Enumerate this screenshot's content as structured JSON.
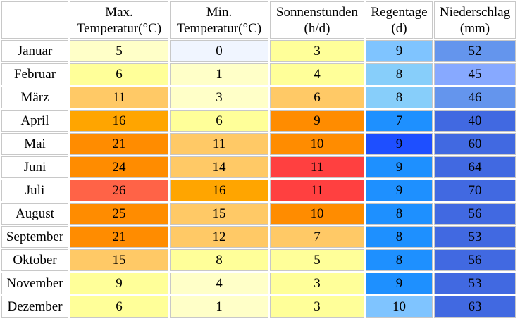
{
  "headers": [
    {
      "line1": "Max.",
      "line2": "Temperatur(°C)"
    },
    {
      "line1": "Min.",
      "line2": "Temperatur(°C)"
    },
    {
      "line1": "Sonnenstunden",
      "line2": "(h/d)"
    },
    {
      "line1": "Regentage",
      "line2": "(d)"
    },
    {
      "line1": "Niederschlag",
      "line2": "(mm)"
    }
  ],
  "rows": [
    {
      "month": "Januar",
      "max": "5",
      "min": "0",
      "sun": "3",
      "rain_days": "9",
      "precip": "52",
      "colors": {
        "max": "#ffffc8",
        "min": "#f0f5ff",
        "sun": "#ffff99",
        "rain_days": "#7fc4ff",
        "precip": "#6495ed"
      }
    },
    {
      "month": "Februar",
      "max": "6",
      "min": "1",
      "sun": "4",
      "rain_days": "8",
      "precip": "45",
      "colors": {
        "max": "#ffff99",
        "min": "#ffffc8",
        "sun": "#ffff99",
        "rain_days": "#87cefa",
        "precip": "#87a9ff"
      }
    },
    {
      "month": "März",
      "max": "11",
      "min": "3",
      "sun": "6",
      "rain_days": "8",
      "precip": "46",
      "colors": {
        "max": "#ffc966",
        "min": "#ffffc8",
        "sun": "#ffc966",
        "rain_days": "#87cefa",
        "precip": "#6495ed"
      }
    },
    {
      "month": "April",
      "max": "16",
      "min": "6",
      "sun": "9",
      "rain_days": "7",
      "precip": "40",
      "colors": {
        "max": "#ffa500",
        "min": "#ffff99",
        "sun": "#ff8c00",
        "rain_days": "#1e90ff",
        "precip": "#4169e1"
      }
    },
    {
      "month": "Mai",
      "max": "21",
      "min": "11",
      "sun": "10",
      "rain_days": "9",
      "precip": "60",
      "colors": {
        "max": "#ff8c00",
        "min": "#ffc966",
        "sun": "#ff8c00",
        "rain_days": "#1e4fff",
        "precip": "#4169e1"
      }
    },
    {
      "month": "Juni",
      "max": "24",
      "min": "14",
      "sun": "11",
      "rain_days": "9",
      "precip": "64",
      "colors": {
        "max": "#ff8c00",
        "min": "#ffc966",
        "sun": "#ff4040",
        "rain_days": "#1e90ff",
        "precip": "#4169e1"
      }
    },
    {
      "month": "Juli",
      "max": "26",
      "min": "16",
      "sun": "11",
      "rain_days": "9",
      "precip": "70",
      "colors": {
        "max": "#ff6347",
        "min": "#ffa500",
        "sun": "#ff4040",
        "rain_days": "#1e90ff",
        "precip": "#4169e1"
      }
    },
    {
      "month": "August",
      "max": "25",
      "min": "15",
      "sun": "10",
      "rain_days": "8",
      "precip": "56",
      "colors": {
        "max": "#ff8c00",
        "min": "#ffc966",
        "sun": "#ff8c00",
        "rain_days": "#1e90ff",
        "precip": "#4169e1"
      }
    },
    {
      "month": "September",
      "max": "21",
      "min": "12",
      "sun": "7",
      "rain_days": "8",
      "precip": "53",
      "colors": {
        "max": "#ff8c00",
        "min": "#ffc966",
        "sun": "#ffc966",
        "rain_days": "#1e90ff",
        "precip": "#4169e1"
      }
    },
    {
      "month": "Oktober",
      "max": "15",
      "min": "8",
      "sun": "5",
      "rain_days": "8",
      "precip": "56",
      "colors": {
        "max": "#ffc966",
        "min": "#ffff99",
        "sun": "#ffff99",
        "rain_days": "#1e90ff",
        "precip": "#4169e1"
      }
    },
    {
      "month": "November",
      "max": "9",
      "min": "4",
      "sun": "3",
      "rain_days": "9",
      "precip": "53",
      "colors": {
        "max": "#ffff99",
        "min": "#ffffc8",
        "sun": "#ffff99",
        "rain_days": "#1e90ff",
        "precip": "#4169e1"
      }
    },
    {
      "month": "Dezember",
      "max": "6",
      "min": "1",
      "sun": "3",
      "rain_days": "10",
      "precip": "63",
      "colors": {
        "max": "#ffff99",
        "min": "#ffffc8",
        "sun": "#ffff99",
        "rain_days": "#7fc4ff",
        "precip": "#4169e1"
      }
    }
  ]
}
